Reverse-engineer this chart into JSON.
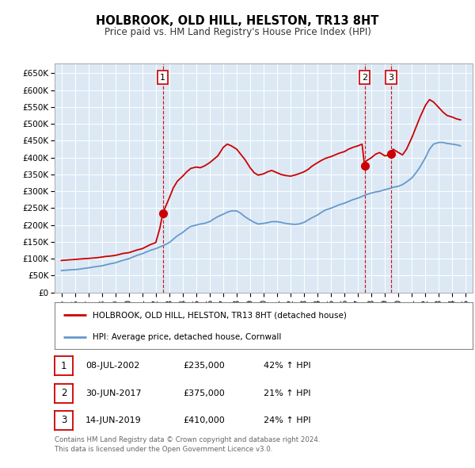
{
  "title": "HOLBROOK, OLD HILL, HELSTON, TR13 8HT",
  "subtitle": "Price paid vs. HM Land Registry's House Price Index (HPI)",
  "ylabel_ticks": [
    "£0",
    "£50K",
    "£100K",
    "£150K",
    "£200K",
    "£250K",
    "£300K",
    "£350K",
    "£400K",
    "£450K",
    "£500K",
    "£550K",
    "£600K",
    "£650K"
  ],
  "ytick_values": [
    0,
    50000,
    100000,
    150000,
    200000,
    250000,
    300000,
    350000,
    400000,
    450000,
    500000,
    550000,
    600000,
    650000
  ],
  "ylim": [
    0,
    680000
  ],
  "xlim_start": 1994.5,
  "xlim_end": 2025.5,
  "background_color": "#dce9f5",
  "red_line_color": "#cc0000",
  "blue_line_color": "#6699cc",
  "marker_color": "#cc0000",
  "vline_color": "#cc0000",
  "transactions": [
    {
      "num": 1,
      "date": "08-JUL-2002",
      "price": 235000,
      "year": 2002.52,
      "pct": "42%",
      "dir": "↑"
    },
    {
      "num": 2,
      "date": "30-JUN-2017",
      "price": 375000,
      "year": 2017.49,
      "pct": "21%",
      "dir": "↑"
    },
    {
      "num": 3,
      "date": "14-JUN-2019",
      "price": 410000,
      "year": 2019.45,
      "pct": "24%",
      "dir": "↑"
    }
  ],
  "red_line": {
    "x": [
      1995.0,
      1995.3,
      1995.6,
      1996.0,
      1996.3,
      1996.6,
      1997.0,
      1997.3,
      1997.6,
      1998.0,
      1998.3,
      1998.6,
      1999.0,
      1999.3,
      1999.6,
      2000.0,
      2000.3,
      2000.6,
      2001.0,
      2001.3,
      2001.6,
      2002.0,
      2002.3,
      2002.52,
      2003.0,
      2003.3,
      2003.6,
      2004.0,
      2004.3,
      2004.6,
      2005.0,
      2005.3,
      2005.6,
      2006.0,
      2006.3,
      2006.6,
      2007.0,
      2007.3,
      2007.6,
      2008.0,
      2008.3,
      2008.6,
      2009.0,
      2009.3,
      2009.6,
      2010.0,
      2010.3,
      2010.6,
      2011.0,
      2011.3,
      2011.6,
      2012.0,
      2012.3,
      2012.6,
      2013.0,
      2013.3,
      2013.6,
      2014.0,
      2014.3,
      2014.6,
      2015.0,
      2015.3,
      2015.6,
      2016.0,
      2016.3,
      2016.6,
      2017.0,
      2017.3,
      2017.49,
      2017.6,
      2018.0,
      2018.3,
      2018.6,
      2019.0,
      2019.45,
      2019.6,
      2020.0,
      2020.3,
      2020.6,
      2021.0,
      2021.3,
      2021.6,
      2022.0,
      2022.3,
      2022.6,
      2023.0,
      2023.3,
      2023.6,
      2024.0,
      2024.3,
      2024.6
    ],
    "y": [
      95000,
      96000,
      97000,
      98000,
      99000,
      100000,
      101000,
      102000,
      103000,
      105000,
      107000,
      108000,
      110000,
      113000,
      116000,
      118000,
      122000,
      126000,
      130000,
      136000,
      142000,
      148000,
      190000,
      235000,
      280000,
      310000,
      330000,
      345000,
      358000,
      368000,
      372000,
      370000,
      375000,
      385000,
      395000,
      405000,
      430000,
      440000,
      435000,
      425000,
      410000,
      395000,
      370000,
      355000,
      348000,
      352000,
      358000,
      362000,
      355000,
      350000,
      347000,
      345000,
      348000,
      352000,
      358000,
      365000,
      375000,
      385000,
      392000,
      398000,
      403000,
      408000,
      413000,
      418000,
      425000,
      430000,
      435000,
      440000,
      375000,
      390000,
      400000,
      410000,
      415000,
      405000,
      410000,
      425000,
      415000,
      408000,
      425000,
      460000,
      490000,
      520000,
      555000,
      572000,
      565000,
      548000,
      535000,
      525000,
      520000,
      515000,
      512000
    ]
  },
  "blue_line": {
    "x": [
      1995.0,
      1995.3,
      1995.6,
      1996.0,
      1996.3,
      1996.6,
      1997.0,
      1997.3,
      1997.6,
      1998.0,
      1998.3,
      1998.6,
      1999.0,
      1999.3,
      1999.6,
      2000.0,
      2000.3,
      2000.6,
      2001.0,
      2001.3,
      2001.6,
      2002.0,
      2002.3,
      2002.6,
      2003.0,
      2003.3,
      2003.6,
      2004.0,
      2004.3,
      2004.6,
      2005.0,
      2005.3,
      2005.6,
      2006.0,
      2006.3,
      2006.6,
      2007.0,
      2007.3,
      2007.6,
      2008.0,
      2008.3,
      2008.6,
      2009.0,
      2009.3,
      2009.6,
      2010.0,
      2010.3,
      2010.6,
      2011.0,
      2011.3,
      2011.6,
      2012.0,
      2012.3,
      2012.6,
      2013.0,
      2013.3,
      2013.6,
      2014.0,
      2014.3,
      2014.6,
      2015.0,
      2015.3,
      2015.6,
      2016.0,
      2016.3,
      2016.6,
      2017.0,
      2017.3,
      2017.6,
      2018.0,
      2018.3,
      2018.6,
      2019.0,
      2019.3,
      2019.6,
      2020.0,
      2020.3,
      2020.6,
      2021.0,
      2021.3,
      2021.6,
      2022.0,
      2022.3,
      2022.6,
      2023.0,
      2023.3,
      2023.6,
      2024.0,
      2024.3,
      2024.6
    ],
    "y": [
      65000,
      66000,
      67000,
      68000,
      69000,
      71000,
      73000,
      75000,
      77000,
      79000,
      82000,
      85000,
      88000,
      92000,
      96000,
      100000,
      105000,
      110000,
      115000,
      120000,
      125000,
      130000,
      135000,
      140000,
      148000,
      158000,
      168000,
      178000,
      188000,
      196000,
      200000,
      203000,
      205000,
      210000,
      218000,
      225000,
      232000,
      238000,
      242000,
      242000,
      235000,
      225000,
      215000,
      208000,
      203000,
      205000,
      207000,
      210000,
      210000,
      208000,
      205000,
      203000,
      202000,
      203000,
      208000,
      215000,
      222000,
      230000,
      238000,
      245000,
      250000,
      255000,
      260000,
      265000,
      270000,
      275000,
      280000,
      285000,
      290000,
      295000,
      298000,
      300000,
      305000,
      308000,
      312000,
      315000,
      320000,
      328000,
      340000,
      355000,
      372000,
      400000,
      425000,
      440000,
      445000,
      445000,
      442000,
      440000,
      438000,
      435000
    ]
  },
  "legend_label_red": "HOLBROOK, OLD HILL, HELSTON, TR13 8HT (detached house)",
  "legend_label_blue": "HPI: Average price, detached house, Cornwall",
  "footer": "Contains HM Land Registry data © Crown copyright and database right 2024.\nThis data is licensed under the Open Government Licence v3.0.",
  "xticks": [
    1995,
    1996,
    1997,
    1998,
    1999,
    2000,
    2001,
    2002,
    2003,
    2004,
    2005,
    2006,
    2007,
    2008,
    2009,
    2010,
    2011,
    2012,
    2013,
    2014,
    2015,
    2016,
    2017,
    2018,
    2019,
    2020,
    2021,
    2022,
    2023,
    2024,
    2025
  ]
}
